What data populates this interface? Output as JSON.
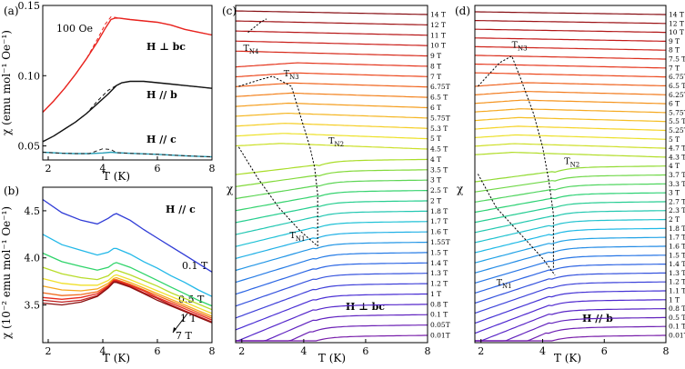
{
  "chart_data": [
    {
      "id": "a",
      "type": "line",
      "panel_label": "(a)",
      "xlabel": "T (K)",
      "ylabel": "χ (emu mol⁻¹ Oe⁻¹)",
      "xlim": [
        1.8,
        8
      ],
      "ylim": [
        0.04,
        0.15
      ],
      "xticks": [
        2,
        4,
        6,
        8
      ],
      "yticks": [
        0.05,
        0.1,
        0.15
      ],
      "yticklabels": [
        "0.05",
        "0.10",
        "0.15"
      ],
      "annotations": [
        "100 Oe",
        "H ⊥ bc",
        "H // b",
        "H // c"
      ],
      "series": [
        {
          "label": "H ⊥ bc",
          "color": "#e8231e",
          "x": [
            1.8,
            2.2,
            2.6,
            3.0,
            3.4,
            3.8,
            4.1,
            4.3,
            4.45,
            4.6,
            5.0,
            5.5,
            6.0,
            6.5,
            7.0,
            7.5,
            8.0
          ],
          "y": [
            0.074,
            0.082,
            0.091,
            0.101,
            0.112,
            0.124,
            0.134,
            0.14,
            0.141,
            0.141,
            0.14,
            0.139,
            0.138,
            0.136,
            0.133,
            0.131,
            0.129
          ]
        },
        {
          "label": "H // b",
          "color": "#111111",
          "x": [
            1.8,
            2.2,
            2.6,
            3.0,
            3.4,
            3.8,
            4.2,
            4.5,
            4.7,
            5.0,
            5.5,
            6.0,
            6.5,
            7.0,
            7.5,
            8.0
          ],
          "y": [
            0.053,
            0.057,
            0.062,
            0.067,
            0.073,
            0.08,
            0.087,
            0.093,
            0.095,
            0.096,
            0.096,
            0.095,
            0.094,
            0.093,
            0.092,
            0.091
          ]
        },
        {
          "label": "H // c",
          "color": "#2aa0b8",
          "x": [
            1.8,
            2.5,
            3.0,
            3.5,
            4.0,
            4.3,
            4.5,
            5.0,
            6.0,
            7.0,
            8.0
          ],
          "y": [
            0.0455,
            0.0448,
            0.0445,
            0.0445,
            0.045,
            0.0455,
            0.0452,
            0.0447,
            0.044,
            0.043,
            0.0422
          ]
        }
      ]
    },
    {
      "id": "b",
      "type": "line",
      "panel_label": "(b)",
      "xlabel": "T (K)",
      "ylabel": "χ (10⁻² emu mol⁻¹ Oe⁻¹)",
      "xlim": [
        1.8,
        8
      ],
      "ylim": [
        3.1,
        4.75
      ],
      "xticks": [
        2,
        4,
        6,
        8
      ],
      "yticks": [
        3.5,
        4.0,
        4.5
      ],
      "yticklabels": [
        "3.5",
        "4.0",
        "4.5"
      ],
      "annotations": [
        "H // c",
        "0.1 T",
        "0.5 T",
        "1 T",
        "7 T"
      ],
      "x": [
        1.8,
        2.5,
        3.2,
        3.8,
        4.2,
        4.4,
        4.5,
        5.0,
        5.5,
        6.0,
        6.5,
        7.0,
        7.5,
        8.0
      ],
      "series": [
        {
          "label": "0.1 T",
          "color": "#2f3bd6",
          "y": [
            4.62,
            4.48,
            4.4,
            4.36,
            4.42,
            4.46,
            4.47,
            4.4,
            4.3,
            4.21,
            4.12,
            4.03,
            3.94,
            3.85
          ]
        },
        {
          "label": "",
          "color": "#22b8e8",
          "y": [
            4.25,
            4.14,
            4.08,
            4.03,
            4.06,
            4.1,
            4.1,
            4.04,
            3.96,
            3.89,
            3.81,
            3.74,
            3.66,
            3.59
          ]
        },
        {
          "label": "",
          "color": "#2fd46a",
          "y": [
            4.05,
            3.96,
            3.91,
            3.87,
            3.9,
            3.94,
            3.95,
            3.9,
            3.83,
            3.76,
            3.69,
            3.62,
            3.55,
            3.49
          ]
        },
        {
          "label": "",
          "color": "#b8dc2a",
          "y": [
            3.9,
            3.83,
            3.79,
            3.77,
            3.81,
            3.86,
            3.87,
            3.82,
            3.76,
            3.7,
            3.63,
            3.57,
            3.51,
            3.45
          ]
        },
        {
          "label": "",
          "color": "#f0e02a",
          "y": [
            3.78,
            3.73,
            3.71,
            3.71,
            3.76,
            3.81,
            3.82,
            3.77,
            3.71,
            3.65,
            3.59,
            3.53,
            3.47,
            3.41
          ]
        },
        {
          "label": "",
          "color": "#f5a81e",
          "y": [
            3.7,
            3.66,
            3.65,
            3.67,
            3.73,
            3.78,
            3.79,
            3.74,
            3.68,
            3.62,
            3.56,
            3.5,
            3.44,
            3.38
          ]
        },
        {
          "label": "",
          "color": "#f06a1e",
          "y": [
            3.63,
            3.6,
            3.61,
            3.64,
            3.71,
            3.77,
            3.77,
            3.72,
            3.66,
            3.6,
            3.54,
            3.48,
            3.42,
            3.36
          ]
        },
        {
          "label": "",
          "color": "#e82a1e",
          "y": [
            3.58,
            3.56,
            3.58,
            3.62,
            3.7,
            3.76,
            3.76,
            3.71,
            3.65,
            3.58,
            3.52,
            3.46,
            3.4,
            3.34
          ]
        },
        {
          "label": "",
          "color": "#c01e1e",
          "y": [
            3.55,
            3.53,
            3.55,
            3.6,
            3.69,
            3.75,
            3.75,
            3.7,
            3.63,
            3.57,
            3.5,
            3.44,
            3.38,
            3.32
          ]
        },
        {
          "label": "7 T",
          "color": "#8a1010",
          "y": [
            3.52,
            3.5,
            3.53,
            3.59,
            3.68,
            3.74,
            3.74,
            3.69,
            3.62,
            3.55,
            3.49,
            3.43,
            3.37,
            3.31
          ]
        }
      ]
    },
    {
      "id": "c",
      "type": "line",
      "panel_label": "(c)",
      "xlabel": "T (K)",
      "ylabel": "χ",
      "xlim": [
        1.8,
        8
      ],
      "xticks": [
        2,
        4,
        6,
        8
      ],
      "annotations": [
        "H ⊥ bc"
      ],
      "transition_labels": [
        "T_N4",
        "T_N3",
        "T_N2",
        "T_N1"
      ],
      "field_labels": [
        "14 T",
        "12 T",
        "11 T",
        "10 T",
        "9 T",
        "8 T",
        "7 T",
        "6.75T",
        "6.5 T",
        "6 T",
        "5.75T",
        "5.3 T",
        "5 T",
        "4.5 T",
        "4 T",
        "3.5 T",
        "3 T",
        "2.5 T",
        "2 T",
        "1.8 T",
        "1.7 T",
        "1.6 T",
        "1.55T",
        "1.5 T",
        "1.4 T",
        "1.3 T",
        "1.2 T",
        "1 T",
        "0.8 T",
        "0.1 T",
        "0.05T",
        "0.01T"
      ]
    },
    {
      "id": "d",
      "type": "line",
      "panel_label": "(d)",
      "xlabel": "T (K)",
      "ylabel": "χ",
      "xlim": [
        1.8,
        8
      ],
      "xticks": [
        2,
        4,
        6,
        8
      ],
      "annotations": [
        "H // b"
      ],
      "transition_labels": [
        "T_N3",
        "T_N2",
        "T_N1"
      ],
      "field_labels": [
        "14 T",
        "12 T",
        "10 T",
        "9 T",
        "8 T",
        "7.5 T",
        "7 T",
        "6.75T",
        "6.5 T",
        "6.25T",
        "6 T",
        "5.75T",
        "5.5 T",
        "5.25T",
        "5 T",
        "4.7 T",
        "4.3 T",
        "4 T",
        "3.7 T",
        "3.3 T",
        "3 T",
        "2.7 T",
        "2.3 T",
        "2 T",
        "1.8 T",
        "1.7 T",
        "1.6 T",
        "1.5 T",
        "1.4 T",
        "1.3 T",
        "1.2 T",
        "1.1 T",
        "1 T",
        "0.8 T",
        "0.5 T",
        "0.1 T",
        "0.01T"
      ]
    }
  ]
}
